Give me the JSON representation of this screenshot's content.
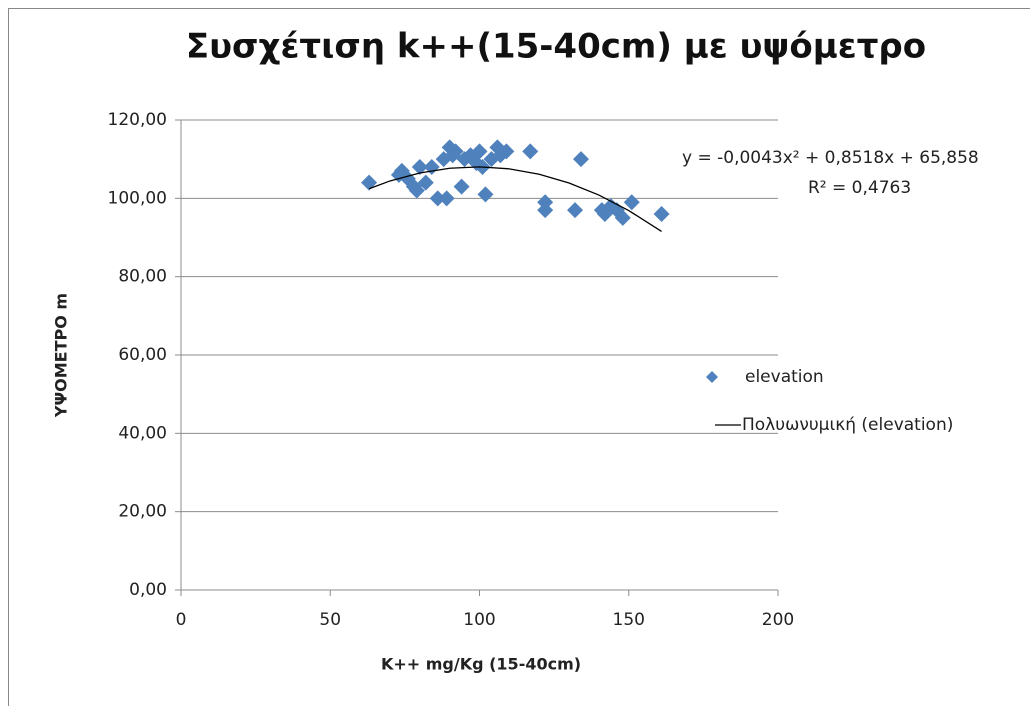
{
  "chart_data": {
    "type": "scatter",
    "title": "Συσχέτιση k++(15-40cm) με υψόμετρο",
    "x_label": "K++ mg/Kg (15-40cm)",
    "y_label": "ΥΨΟΜΕΤΡΟ m",
    "trend_equation": "y = -0,0043x² + 0,8518x + 65,858",
    "trend_r2": "R² = 0,4763",
    "xlim": [
      0,
      200
    ],
    "xticks": [
      0,
      50,
      100,
      150,
      200
    ],
    "ylim": [
      0,
      120
    ],
    "yticks": [
      {
        "value": 0,
        "label": "0,00"
      },
      {
        "value": 20,
        "label": "20,00"
      },
      {
        "value": 40,
        "label": "40,00"
      },
      {
        "value": 60,
        "label": "60,00"
      },
      {
        "value": 80,
        "label": "80,00"
      },
      {
        "value": 100,
        "label": "100,00"
      },
      {
        "value": 120,
        "label": "120,00"
      }
    ],
    "grid": true,
    "legend": "right",
    "series": [
      {
        "name": "elevation",
        "color": "#4f81bd",
        "style": "markers",
        "x": [
          63,
          73,
          74,
          76,
          78,
          79,
          80,
          82,
          84,
          86,
          88,
          89,
          90,
          91,
          92,
          94,
          95,
          97,
          99,
          100,
          101,
          102,
          104,
          106,
          107,
          109,
          117,
          122,
          122,
          132,
          134,
          141,
          142,
          144,
          146,
          148,
          151,
          161
        ],
        "values": [
          104,
          106,
          107,
          105,
          103,
          102,
          108,
          104,
          108,
          100,
          110,
          100,
          113,
          111,
          112,
          103,
          110,
          111,
          109,
          112,
          108,
          101,
          110,
          113,
          111,
          112,
          112,
          99,
          97,
          97,
          110,
          97,
          96,
          98,
          97,
          95,
          99,
          96
        ]
      },
      {
        "name": "Πολυωνυμική (elevation)",
        "color": "#000000",
        "style": "line",
        "x": [
          63,
          70,
          80,
          90,
          100,
          110,
          120,
          130,
          140,
          150,
          161
        ],
        "values": [
          102.45,
          104.44,
          106.48,
          107.69,
          108.04,
          107.53,
          106.16,
          103.92,
          100.83,
          96.88,
          91.54
        ]
      }
    ]
  }
}
